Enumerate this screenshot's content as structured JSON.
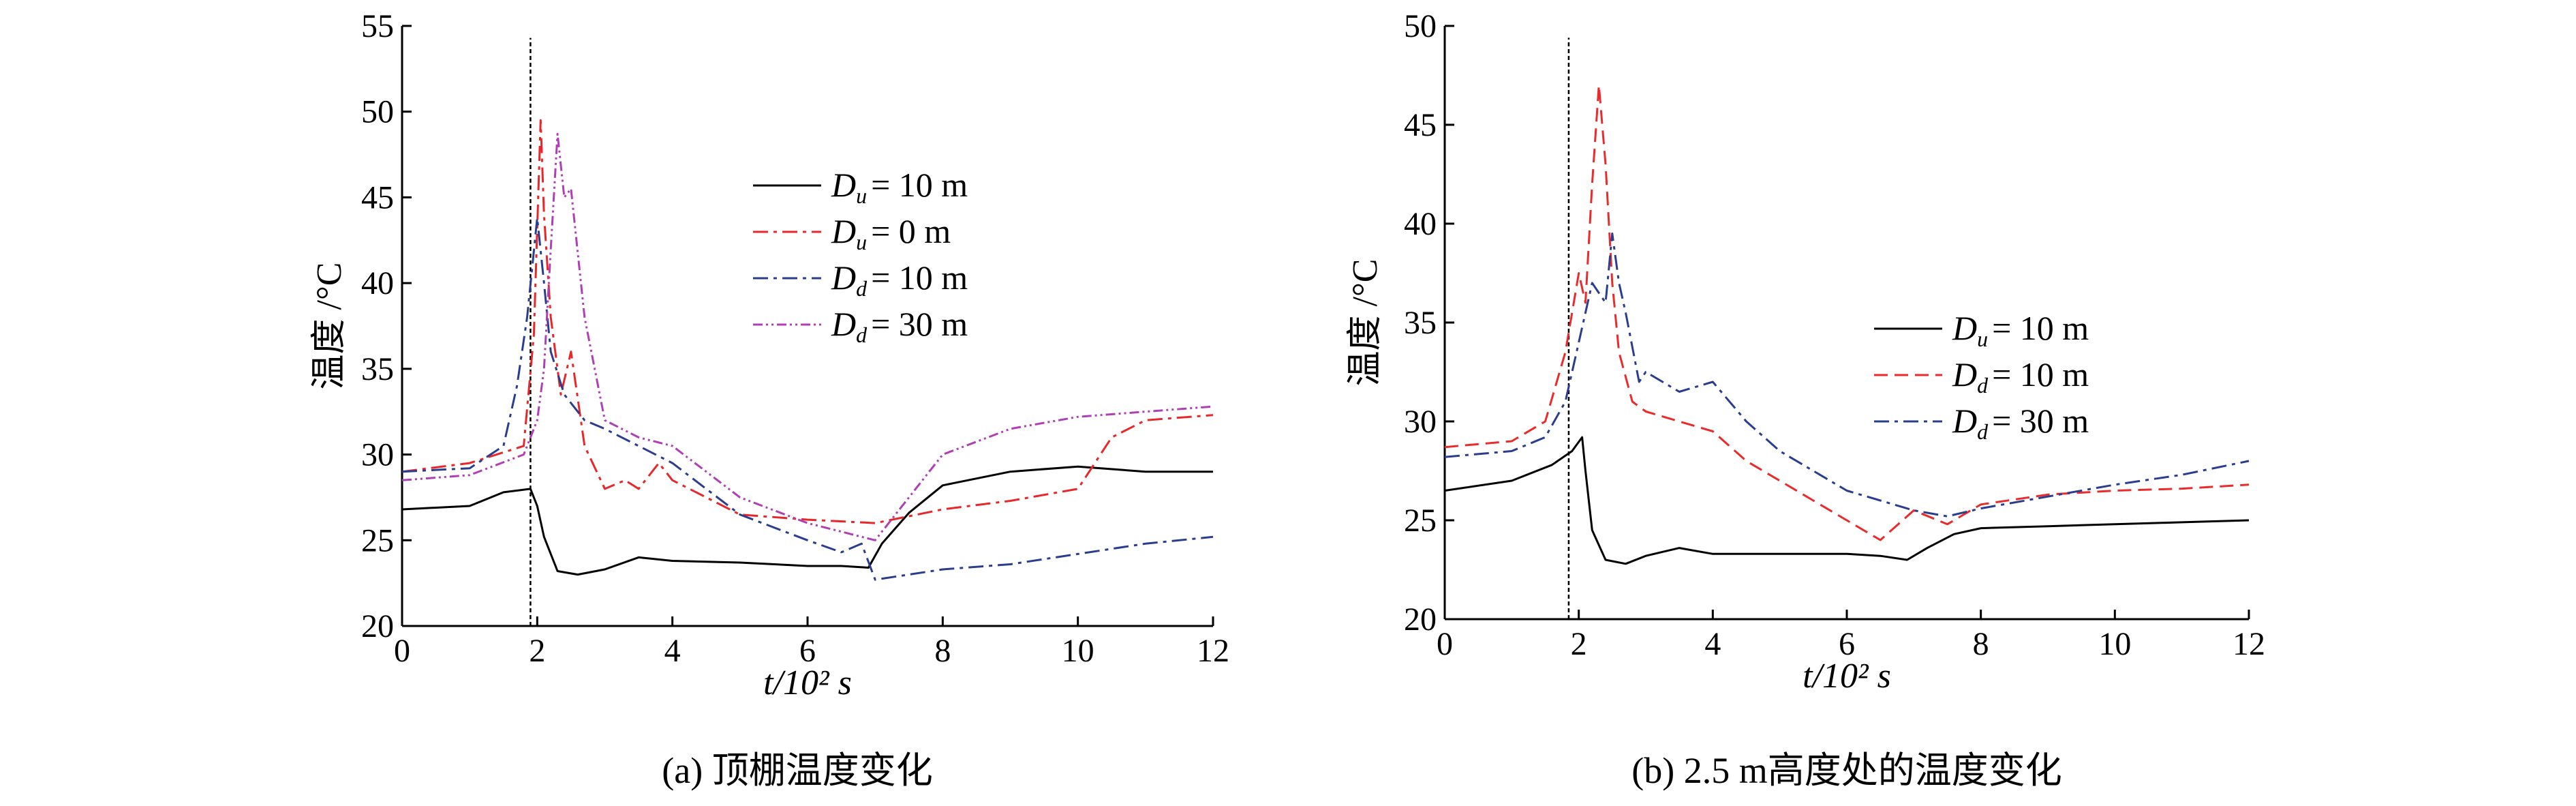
{
  "chart_data": [
    {
      "type": "line",
      "caption": "(a) 顶棚温度变化",
      "xlabel": "t/10² s",
      "ylabel": "温度 /°C",
      "xlim": [
        0,
        12
      ],
      "ylim": [
        20,
        55
      ],
      "xticks": [
        0,
        2,
        4,
        6,
        8,
        10,
        12
      ],
      "yticks": [
        20,
        25,
        30,
        35,
        40,
        45,
        50,
        55
      ],
      "vline_x": 1.9,
      "legend_position": "upper-right",
      "series": [
        {
          "name": "Du = 10 m",
          "label_main": "D",
          "label_sub": "u",
          "label_tail": "= 10 m",
          "color": "#000000",
          "dash": "",
          "x": [
            0,
            1.0,
            1.5,
            1.9,
            2.0,
            2.1,
            2.3,
            2.6,
            3.0,
            3.5,
            4.0,
            5.0,
            6.0,
            6.5,
            6.9,
            7.1,
            7.5,
            8.0,
            9.0,
            10.0,
            11.0,
            12.0
          ],
          "y": [
            26.8,
            27.0,
            27.8,
            28.0,
            27.0,
            25.2,
            23.2,
            23.0,
            23.3,
            24.0,
            23.8,
            23.7,
            23.5,
            23.5,
            23.4,
            24.8,
            26.6,
            28.2,
            29.0,
            29.3,
            29.0,
            29.0
          ]
        },
        {
          "name": "Du = 0 m",
          "label_main": "D",
          "label_sub": "u",
          "label_tail": "= 0 m",
          "color": "#e8272a",
          "dash": "22,8,5,8",
          "x": [
            0,
            1.0,
            1.8,
            1.95,
            2.05,
            2.1,
            2.2,
            2.35,
            2.5,
            2.7,
            3.0,
            3.3,
            3.5,
            3.8,
            4.0,
            4.5,
            5.0,
            6.0,
            7.0,
            8.0,
            9.0,
            10.0,
            10.5,
            11.0,
            12.0
          ],
          "y": [
            29.0,
            29.5,
            30.5,
            37.0,
            49.5,
            44.0,
            38.0,
            33.5,
            36.0,
            30.5,
            28.0,
            28.5,
            28.0,
            29.5,
            28.5,
            27.5,
            26.5,
            26.2,
            26.0,
            26.8,
            27.3,
            28.0,
            31.0,
            32.0,
            32.3
          ]
        },
        {
          "name": "Dd = 10 m",
          "label_main": "D",
          "label_sub": "d",
          "label_tail": "= 10 m",
          "color": "#2b3d8f",
          "dash": "22,8,5,8",
          "x": [
            0,
            1.0,
            1.5,
            1.7,
            1.85,
            2.0,
            2.1,
            2.2,
            2.4,
            2.7,
            3.0,
            3.5,
            4.0,
            4.5,
            5.0,
            6.0,
            6.5,
            6.8,
            7.0,
            7.5,
            8.0,
            9.0,
            10.0,
            11.0,
            12.0
          ],
          "y": [
            29.0,
            29.2,
            30.5,
            34.0,
            38.0,
            43.8,
            40.0,
            36.0,
            33.5,
            32.0,
            31.5,
            30.5,
            29.5,
            28.0,
            26.5,
            25.0,
            24.3,
            24.8,
            22.7,
            23.0,
            23.3,
            23.6,
            24.2,
            24.8,
            25.2
          ]
        },
        {
          "name": "Dd = 30 m",
          "label_main": "D",
          "label_sub": "d",
          "label_tail": "= 30 m",
          "color": "#b03fb5",
          "dash": "14,5,3,5,3,5",
          "x": [
            0,
            1.0,
            1.8,
            2.0,
            2.1,
            2.2,
            2.3,
            2.4,
            2.5,
            2.7,
            3.0,
            3.5,
            4.0,
            4.5,
            5.0,
            6.0,
            6.5,
            7.0,
            7.5,
            8.0,
            9.0,
            10.0,
            11.0,
            12.0
          ],
          "y": [
            28.5,
            28.8,
            30.0,
            32.0,
            35.0,
            42.0,
            48.7,
            45.0,
            45.5,
            38.0,
            32.0,
            31.0,
            30.5,
            29.0,
            27.5,
            26.0,
            25.5,
            25.0,
            27.5,
            30.0,
            31.5,
            32.2,
            32.5,
            32.8
          ]
        }
      ]
    },
    {
      "type": "line",
      "caption": "(b) 2.5 m高度处的温度变化",
      "xlabel": "t/10² s",
      "ylabel": "温度 /°C",
      "xlim": [
        0,
        12
      ],
      "ylim": [
        20,
        50
      ],
      "xticks": [
        0,
        2,
        4,
        6,
        8,
        10,
        12
      ],
      "yticks": [
        20,
        25,
        30,
        35,
        40,
        45,
        50
      ],
      "vline_x": 1.85,
      "legend_position": "center-right",
      "series": [
        {
          "name": "Du = 10 m",
          "label_main": "D",
          "label_sub": "u",
          "label_tail": "= 10 m",
          "color": "#000000",
          "dash": "",
          "x": [
            0,
            1.0,
            1.6,
            1.9,
            2.05,
            2.1,
            2.2,
            2.4,
            2.7,
            3.0,
            3.5,
            4.0,
            5.0,
            6.0,
            6.5,
            6.9,
            7.2,
            7.6,
            8.0,
            9.0,
            10.0,
            11.0,
            12.0
          ],
          "y": [
            26.5,
            27.0,
            27.8,
            28.5,
            29.2,
            27.5,
            24.5,
            23.0,
            22.8,
            23.2,
            23.6,
            23.3,
            23.3,
            23.3,
            23.2,
            23.0,
            23.6,
            24.3,
            24.6,
            24.7,
            24.8,
            24.9,
            25.0
          ]
        },
        {
          "name": "Dd = 10 m",
          "label_main": "D",
          "label_sub": "d",
          "label_tail": "= 10 m",
          "color": "#ea2b2b",
          "dash": "20,10",
          "x": [
            0,
            1.0,
            1.5,
            1.8,
            2.0,
            2.1,
            2.2,
            2.3,
            2.4,
            2.5,
            2.6,
            2.8,
            3.0,
            3.5,
            4.0,
            4.5,
            5.0,
            5.5,
            6.0,
            6.5,
            7.0,
            7.5,
            8.0,
            9.0,
            10.0,
            11.0,
            12.0
          ],
          "y": [
            28.7,
            29.0,
            30.0,
            33.5,
            37.5,
            36.0,
            42.0,
            47.0,
            43.0,
            37.0,
            33.5,
            31.0,
            30.5,
            30.0,
            29.5,
            28.0,
            27.0,
            26.0,
            25.0,
            24.0,
            25.5,
            24.8,
            25.8,
            26.3,
            26.5,
            26.6,
            26.8
          ]
        },
        {
          "name": "Dd = 30 m",
          "label_main": "D",
          "label_sub": "d",
          "label_tail": "= 30 m",
          "color": "#2b3d8f",
          "dash": "22,8,5,8",
          "x": [
            0,
            1.0,
            1.5,
            1.8,
            2.0,
            2.2,
            2.4,
            2.5,
            2.6,
            2.7,
            2.9,
            3.0,
            3.5,
            4.0,
            4.5,
            5.0,
            5.5,
            6.0,
            6.5,
            7.0,
            7.5,
            8.0,
            9.0,
            10.0,
            11.0,
            12.0
          ],
          "y": [
            28.2,
            28.5,
            29.2,
            31.0,
            34.0,
            37.0,
            36.0,
            39.5,
            37.0,
            35.5,
            32.0,
            32.5,
            31.5,
            32.0,
            30.0,
            28.5,
            27.5,
            26.5,
            26.0,
            25.5,
            25.2,
            25.6,
            26.2,
            26.8,
            27.3,
            28.0
          ]
        }
      ]
    }
  ]
}
